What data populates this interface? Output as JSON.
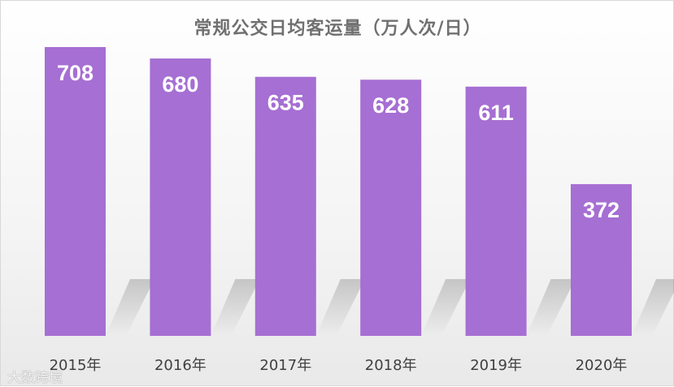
{
  "chart_data": {
    "type": "bar",
    "title": "常规公交日均客运量（万人次/日）",
    "categories": [
      "2015年",
      "2016年",
      "2017年",
      "2018年",
      "2019年",
      "2020年"
    ],
    "values": [
      708,
      680,
      635,
      628,
      611,
      372
    ],
    "ylim": [
      0,
      708
    ],
    "grid": false,
    "bar_color": "#a66fd3"
  },
  "watermark": "大数跨境"
}
